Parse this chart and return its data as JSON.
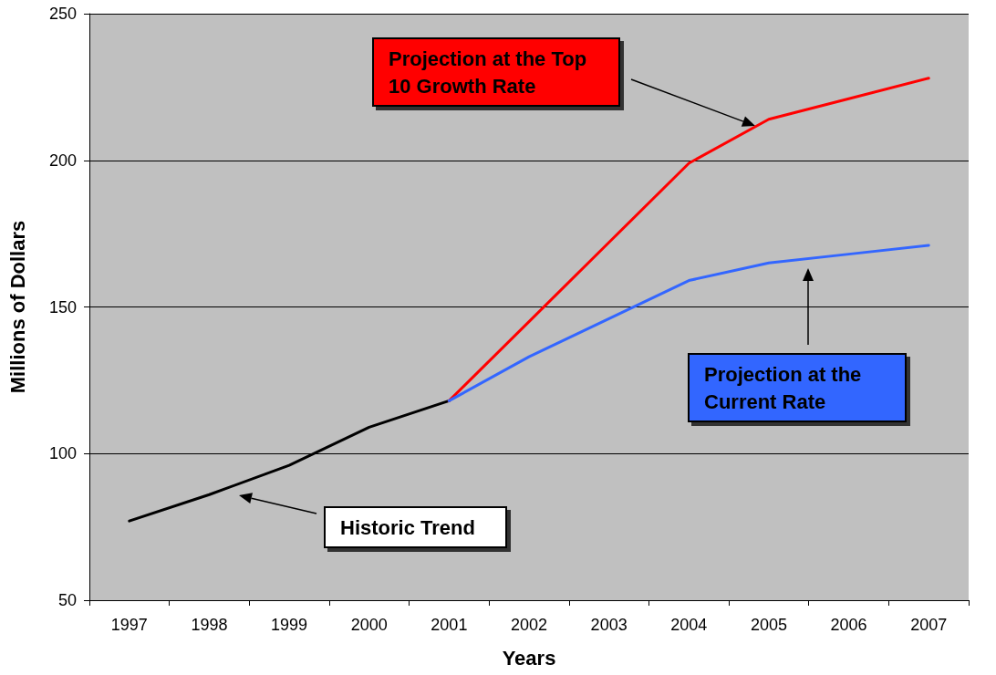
{
  "chart_data": {
    "type": "line",
    "xlabel": "Years",
    "ylabel": "Millions of Dollars",
    "categories": [
      "1997",
      "1998",
      "1999",
      "2000",
      "2001",
      "2002",
      "2003",
      "2004",
      "2005",
      "2006",
      "2007"
    ],
    "series": [
      {
        "name": "Historic Trend",
        "color": "#000000",
        "values": [
          77,
          86,
          96,
          109,
          118,
          null,
          null,
          null,
          null,
          null,
          null
        ]
      },
      {
        "name": "Projection at the Top 10 Growth Rate",
        "color": "#ff0000",
        "values": [
          null,
          null,
          null,
          null,
          118,
          145,
          172,
          199,
          214,
          221,
          228
        ]
      },
      {
        "name": "Projection at the Current Rate",
        "color": "#3366ff",
        "values": [
          null,
          null,
          null,
          null,
          118,
          133,
          146,
          159,
          165,
          168,
          171
        ]
      }
    ],
    "ylim": [
      50,
      250
    ],
    "yticks": [
      50,
      100,
      150,
      200,
      250
    ],
    "grid": "y",
    "legend": false,
    "marker": "none",
    "line_style": "solid"
  }
}
